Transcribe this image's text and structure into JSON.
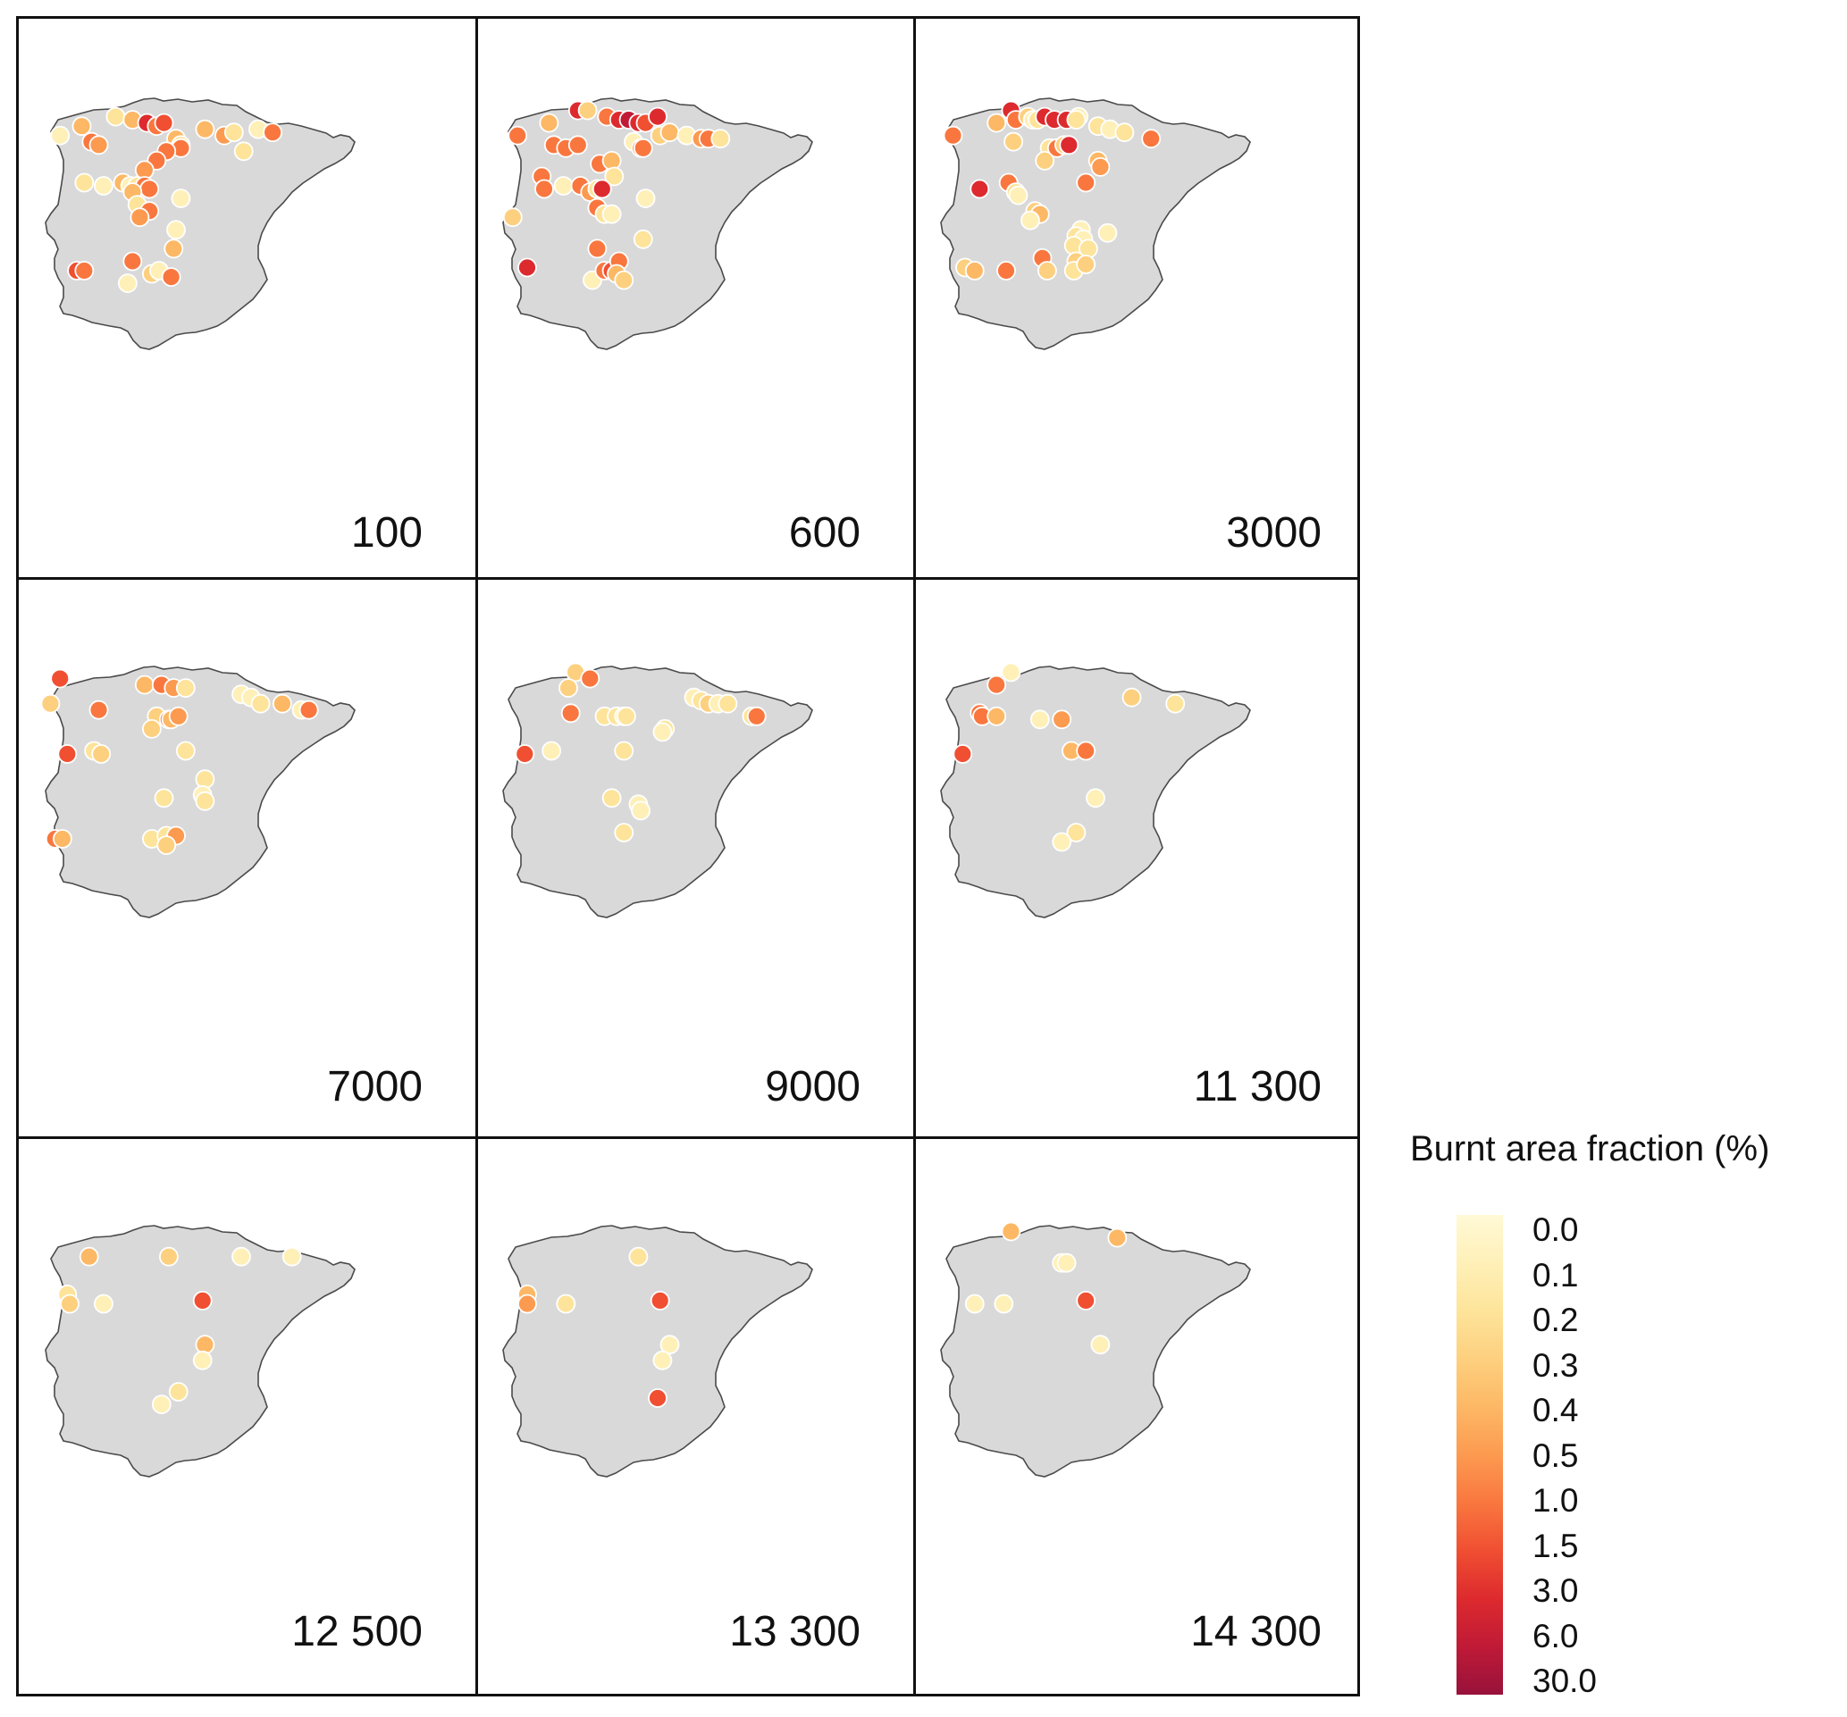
{
  "panels": [
    {
      "label": "100",
      "sites": [
        [
          -8.8,
          42.8,
          0.1
        ],
        [
          -7.9,
          43.1,
          0.4
        ],
        [
          -7.5,
          42.6,
          1
        ],
        [
          -7.2,
          42.5,
          0.5
        ],
        [
          -6.5,
          43.4,
          0.2
        ],
        [
          -5.8,
          43.3,
          0.4
        ],
        [
          -5.2,
          43.2,
          3
        ],
        [
          -4.8,
          43.1,
          1
        ],
        [
          -4.5,
          43.2,
          1.5
        ],
        [
          -4.0,
          42.7,
          0.4
        ],
        [
          -3.8,
          42.5,
          0.2
        ],
        [
          -3.8,
          42.4,
          1
        ],
        [
          -4.4,
          42.3,
          1
        ],
        [
          -4.8,
          42.0,
          1
        ],
        [
          -5.3,
          41.7,
          0.5
        ],
        [
          -2.8,
          43.0,
          0.4
        ],
        [
          -2.0,
          42.8,
          0.5
        ],
        [
          -1.6,
          42.9,
          0.2
        ],
        [
          -1.2,
          42.3,
          0.2
        ],
        [
          -0.6,
          43.0,
          0.1
        ],
        [
          0.0,
          42.9,
          1
        ],
        [
          -7.8,
          41.3,
          0.2
        ],
        [
          -7.0,
          41.2,
          0.1
        ],
        [
          -6.2,
          41.3,
          0.4
        ],
        [
          -5.9,
          41.2,
          0.1
        ],
        [
          -5.6,
          41.2,
          0.2
        ],
        [
          -5.3,
          41.2,
          1
        ],
        [
          -5.1,
          41.1,
          1
        ],
        [
          -5.8,
          41.0,
          0.4
        ],
        [
          -5.6,
          40.6,
          0.2
        ],
        [
          -5.1,
          40.4,
          1
        ],
        [
          -5.5,
          40.2,
          0.5
        ],
        [
          -3.8,
          40.8,
          0.1
        ],
        [
          -4.0,
          39.8,
          0.1
        ],
        [
          -4.1,
          39.2,
          0.4
        ],
        [
          -5.8,
          38.8,
          1
        ],
        [
          -8.1,
          38.5,
          1.5
        ],
        [
          -7.8,
          38.5,
          1
        ],
        [
          -6.0,
          38.1,
          0.1
        ],
        [
          -5.0,
          38.4,
          0.3
        ],
        [
          -4.7,
          38.5,
          0.1
        ],
        [
          -4.2,
          38.3,
          1
        ]
      ]
    },
    {
      "label": "600",
      "sites": [
        [
          -8.8,
          42.8,
          1
        ],
        [
          -7.5,
          43.2,
          0.4
        ],
        [
          -6.3,
          43.6,
          3
        ],
        [
          -5.9,
          43.6,
          0.3
        ],
        [
          -5.1,
          43.4,
          1
        ],
        [
          -4.6,
          43.3,
          3
        ],
        [
          -4.2,
          43.3,
          6
        ],
        [
          -3.8,
          43.2,
          3
        ],
        [
          -3.5,
          43.2,
          1.5
        ],
        [
          -3.0,
          43.4,
          3
        ],
        [
          -7.3,
          42.5,
          1
        ],
        [
          -6.8,
          42.4,
          1
        ],
        [
          -6.3,
          42.5,
          1
        ],
        [
          -4.0,
          42.6,
          0.1
        ],
        [
          -3.7,
          42.4,
          0.5
        ],
        [
          -3.6,
          42.4,
          1
        ],
        [
          -2.9,
          42.8,
          0.3
        ],
        [
          -2.5,
          42.9,
          0.4
        ],
        [
          -1.8,
          42.8,
          0.1
        ],
        [
          -1.2,
          42.7,
          0.5
        ],
        [
          -0.9,
          42.7,
          1
        ],
        [
          -0.4,
          42.7,
          0.2
        ],
        [
          -5.4,
          41.9,
          1
        ],
        [
          -4.9,
          42.0,
          0.4
        ],
        [
          -4.8,
          41.5,
          0.2
        ],
        [
          -7.8,
          41.5,
          1
        ],
        [
          -7.7,
          41.1,
          1
        ],
        [
          -6.9,
          41.2,
          0.1
        ],
        [
          -6.2,
          41.2,
          1
        ],
        [
          -5.8,
          41.0,
          0.5
        ],
        [
          -5.5,
          41.1,
          0.2
        ],
        [
          -5.3,
          41.1,
          3
        ],
        [
          -5.5,
          40.5,
          1
        ],
        [
          -5.2,
          40.3,
          0.2
        ],
        [
          -4.9,
          40.3,
          0.1
        ],
        [
          -3.5,
          40.8,
          0.1
        ],
        [
          -9.0,
          40.2,
          0.3
        ],
        [
          -5.5,
          39.2,
          1
        ],
        [
          -3.6,
          39.5,
          0.2
        ],
        [
          -8.4,
          38.6,
          3
        ],
        [
          -5.7,
          38.2,
          0.1
        ],
        [
          -5.2,
          38.5,
          1
        ],
        [
          -4.9,
          38.5,
          1.5
        ],
        [
          -4.6,
          38.8,
          1
        ],
        [
          -4.7,
          38.4,
          0.4
        ],
        [
          -4.4,
          38.2,
          0.3
        ]
      ]
    },
    {
      "label": "3000",
      "sites": [
        [
          -8.9,
          42.8,
          1
        ],
        [
          -7.1,
          43.2,
          0.4
        ],
        [
          -6.5,
          43.6,
          3
        ],
        [
          -6.3,
          43.3,
          1
        ],
        [
          -5.8,
          43.4,
          0.3
        ],
        [
          -5.6,
          43.3,
          0.1
        ],
        [
          -5.4,
          43.3,
          0.2
        ],
        [
          -5.1,
          43.4,
          3
        ],
        [
          -4.7,
          43.3,
          3
        ],
        [
          -4.2,
          43.3,
          3
        ],
        [
          -3.7,
          43.4,
          0.1
        ],
        [
          -3.8,
          43.3,
          0.2
        ],
        [
          -2.9,
          43.1,
          0.2
        ],
        [
          -2.4,
          43.0,
          0.1
        ],
        [
          -1.8,
          42.9,
          0.2
        ],
        [
          -0.7,
          42.7,
          1
        ],
        [
          -6.4,
          42.6,
          0.3
        ],
        [
          -4.9,
          42.4,
          0.2
        ],
        [
          -4.6,
          42.4,
          1
        ],
        [
          -4.3,
          42.5,
          0.3
        ],
        [
          -4.1,
          42.5,
          3
        ],
        [
          -5.1,
          42.0,
          0.3
        ],
        [
          -2.9,
          42.0,
          0.4
        ],
        [
          -2.8,
          41.8,
          0.5
        ],
        [
          -7.8,
          41.1,
          3
        ],
        [
          -6.6,
          41.3,
          1
        ],
        [
          -6.3,
          41.0,
          0.2
        ],
        [
          -6.2,
          40.9,
          0.1
        ],
        [
          -5.5,
          40.4,
          0.3
        ],
        [
          -5.3,
          40.3,
          0.4
        ],
        [
          -5.7,
          40.1,
          0.1
        ],
        [
          -3.4,
          41.3,
          1
        ],
        [
          -3.6,
          39.8,
          0.1
        ],
        [
          -3.8,
          39.6,
          0.2
        ],
        [
          -3.5,
          39.5,
          0.1
        ],
        [
          -3.9,
          39.3,
          0.2
        ],
        [
          -3.3,
          39.2,
          0.2
        ],
        [
          -2.5,
          39.7,
          0.1
        ],
        [
          -5.2,
          38.9,
          1
        ],
        [
          -3.8,
          38.8,
          0.3
        ],
        [
          -8.4,
          38.6,
          0.3
        ],
        [
          -8.0,
          38.5,
          0.4
        ],
        [
          -6.7,
          38.5,
          1
        ],
        [
          -5.0,
          38.5,
          0.3
        ],
        [
          -3.9,
          38.5,
          0.2
        ],
        [
          -3.4,
          38.7,
          0.3
        ]
      ]
    },
    {
      "label": "7000",
      "sites": [
        [
          -8.8,
          43.6,
          1.5
        ],
        [
          -9.2,
          42.8,
          0.3
        ],
        [
          -7.2,
          42.6,
          1
        ],
        [
          -5.3,
          43.4,
          0.4
        ],
        [
          -4.6,
          43.4,
          1
        ],
        [
          -4.1,
          43.3,
          0.5
        ],
        [
          -3.6,
          43.3,
          0.2
        ],
        [
          -1.3,
          43.1,
          0.1
        ],
        [
          -0.9,
          43.0,
          0.1
        ],
        [
          -0.5,
          42.8,
          0.2
        ],
        [
          0.4,
          42.8,
          0.4
        ],
        [
          1.2,
          42.6,
          0.1
        ],
        [
          1.5,
          42.6,
          1
        ],
        [
          -4.8,
          42.4,
          0.3
        ],
        [
          -4.3,
          42.3,
          1
        ],
        [
          -4.2,
          42.3,
          0.4
        ],
        [
          -3.9,
          42.4,
          0.5
        ],
        [
          -5.0,
          42.0,
          0.3
        ],
        [
          -8.5,
          41.2,
          1.5
        ],
        [
          -7.4,
          41.3,
          0.2
        ],
        [
          -7.1,
          41.2,
          0.3
        ],
        [
          -3.6,
          41.3,
          0.2
        ],
        [
          -2.8,
          40.4,
          0.2
        ],
        [
          -2.9,
          39.9,
          0.1
        ],
        [
          -2.8,
          39.7,
          0.2
        ],
        [
          -4.5,
          39.8,
          0.2
        ],
        [
          -9.0,
          38.5,
          1
        ],
        [
          -8.7,
          38.5,
          0.4
        ],
        [
          -5.0,
          38.5,
          0.2
        ],
        [
          -4.4,
          38.6,
          0.2
        ],
        [
          -4.0,
          38.6,
          0.5
        ],
        [
          -4.4,
          38.3,
          0.3
        ]
      ]
    },
    {
      "label": "9000",
      "sites": [
        [
          -6.4,
          43.8,
          0.3
        ],
        [
          -6.7,
          43.3,
          0.3
        ],
        [
          -5.8,
          43.6,
          1
        ],
        [
          -6.6,
          42.5,
          1
        ],
        [
          -5.2,
          42.4,
          0.2
        ],
        [
          -4.7,
          42.4,
          0.2
        ],
        [
          -4.4,
          42.4,
          0.1
        ],
        [
          -4.3,
          42.4,
          0.2
        ],
        [
          -1.5,
          43.0,
          0.1
        ],
        [
          -1.2,
          42.9,
          0.2
        ],
        [
          -0.9,
          42.8,
          0.3
        ],
        [
          -0.5,
          42.8,
          0.1
        ],
        [
          -0.1,
          42.8,
          0.2
        ],
        [
          0.9,
          42.4,
          0.2
        ],
        [
          1.1,
          42.4,
          1
        ],
        [
          -2.7,
          42.0,
          0.2
        ],
        [
          -2.8,
          41.9,
          0.1
        ],
        [
          -8.5,
          41.2,
          1.5
        ],
        [
          -7.4,
          41.3,
          0.1
        ],
        [
          -4.4,
          41.3,
          0.2
        ],
        [
          -4.9,
          39.8,
          0.2
        ],
        [
          -3.8,
          39.6,
          0.1
        ],
        [
          -3.7,
          39.4,
          0.1
        ],
        [
          -4.4,
          38.7,
          0.2
        ]
      ]
    },
    {
      "label": "11 300",
      "sites": [
        [
          -6.5,
          43.8,
          0.1
        ],
        [
          -7.1,
          43.4,
          1
        ],
        [
          -7.8,
          42.5,
          1
        ],
        [
          -7.7,
          42.4,
          1
        ],
        [
          -7.1,
          42.4,
          0.4
        ],
        [
          -5.3,
          42.3,
          0.1
        ],
        [
          -4.4,
          42.3,
          0.5
        ],
        [
          -1.5,
          43.0,
          0.3
        ],
        [
          0.3,
          42.8,
          0.2
        ],
        [
          -8.5,
          41.2,
          1.5
        ],
        [
          -4.0,
          41.3,
          0.4
        ],
        [
          -3.4,
          41.3,
          1
        ],
        [
          -3.0,
          39.8,
          0.1
        ],
        [
          -3.8,
          38.7,
          0.2
        ],
        [
          -4.4,
          38.4,
          0.1
        ]
      ]
    },
    {
      "label": "12 500",
      "sites": [
        [
          -7.6,
          43.0,
          0.4
        ],
        [
          -4.3,
          43.0,
          0.3
        ],
        [
          -1.3,
          43.0,
          0.1
        ],
        [
          0.8,
          43.0,
          0.1
        ],
        [
          -8.5,
          41.8,
          0.2
        ],
        [
          -8.4,
          41.5,
          0.3
        ],
        [
          -7.0,
          41.5,
          0.1
        ],
        [
          -2.9,
          41.6,
          1.5
        ],
        [
          -2.8,
          40.2,
          0.4
        ],
        [
          -2.9,
          39.7,
          0.1
        ],
        [
          -3.9,
          38.7,
          0.2
        ],
        [
          -4.6,
          38.3,
          0.1
        ]
      ]
    },
    {
      "label": "13 300",
      "sites": [
        [
          -3.8,
          43.0,
          0.2
        ],
        [
          -8.4,
          41.8,
          0.4
        ],
        [
          -8.4,
          41.5,
          0.5
        ],
        [
          -6.8,
          41.5,
          0.2
        ],
        [
          -2.9,
          41.6,
          1.5
        ],
        [
          -2.5,
          40.2,
          0.1
        ],
        [
          -2.8,
          39.7,
          0.1
        ],
        [
          -3.0,
          38.5,
          1.5
        ]
      ]
    },
    {
      "label": "14 300",
      "sites": [
        [
          -6.5,
          43.8,
          0.4
        ],
        [
          -2.1,
          43.6,
          0.4
        ],
        [
          -4.4,
          42.8,
          0.1
        ],
        [
          -4.2,
          42.8,
          0.1
        ],
        [
          -8.0,
          41.5,
          0.1
        ],
        [
          -6.8,
          41.5,
          0.1
        ],
        [
          -3.4,
          41.6,
          1.5
        ],
        [
          -2.8,
          40.2,
          0.1
        ]
      ]
    }
  ],
  "legend": {
    "title": "Burnt area fraction (%)",
    "ticks": [
      "0.0",
      "0.1",
      "0.2",
      "0.3",
      "0.4",
      "0.5",
      "1.0",
      "1.5",
      "3.0",
      "6.0",
      "30.0"
    ],
    "colors": [
      "#fff9d6",
      "#fff0b8",
      "#fde49a",
      "#fdd07f",
      "#fdb865",
      "#fc9a50",
      "#f9773f",
      "#f04f32",
      "#dd2a2e",
      "#c01a37",
      "#98123b"
    ]
  }
}
